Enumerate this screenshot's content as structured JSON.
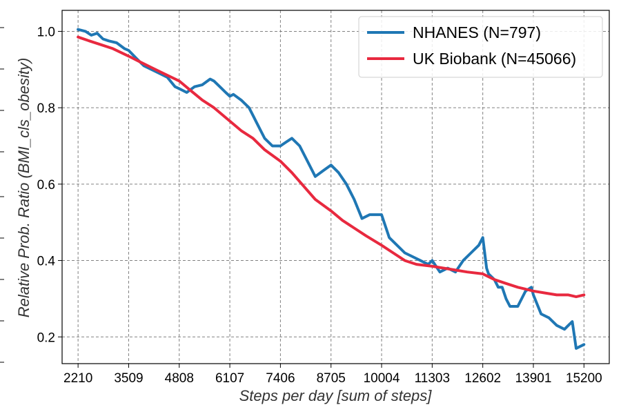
{
  "chart_data": {
    "type": "line",
    "xlabel": "Steps per day [sum of steps]",
    "ylabel": "Relative Prob. Ratio (BMI_cls_obesity)",
    "xlim": [
      1800,
      15850
    ],
    "ylim": [
      0.13,
      1.055
    ],
    "xticks": [
      2210,
      3509,
      4808,
      6107,
      7406,
      8705,
      10004,
      11303,
      12602,
      13901,
      15200
    ],
    "yticks": [
      0.2,
      0.4,
      0.6,
      0.8,
      1.0
    ],
    "ytick_labels": [
      "0.2",
      "0.4",
      "0.6",
      "0.8",
      "1.0"
    ],
    "grid": true,
    "legend_position": "top-right",
    "series": [
      {
        "name": "NHANES (N=797)",
        "color": "#1f77b4",
        "x": [
          2210,
          2400,
          2550,
          2700,
          2850,
          3000,
          3200,
          3400,
          3509,
          3700,
          3900,
          4100,
          4300,
          4500,
          4700,
          4808,
          5000,
          5200,
          5400,
          5600,
          5700,
          5800,
          6000,
          6107,
          6200,
          6400,
          6600,
          6700,
          6800,
          7000,
          7200,
          7406,
          7550,
          7700,
          7900,
          8100,
          8300,
          8500,
          8705,
          8900,
          9100,
          9300,
          9500,
          9700,
          9900,
          10004,
          10200,
          10400,
          10600,
          10800,
          11000,
          11200,
          11303,
          11500,
          11700,
          11900,
          12100,
          12300,
          12500,
          12602,
          12700,
          12750,
          12900,
          13000,
          13100,
          13200,
          13300,
          13500,
          13700,
          13850,
          13901,
          14100,
          14300,
          14500,
          14700,
          14800,
          14900,
          15000,
          15200
        ],
        "y": [
          1.005,
          1.0,
          0.99,
          0.995,
          0.98,
          0.975,
          0.97,
          0.955,
          0.95,
          0.93,
          0.91,
          0.9,
          0.89,
          0.88,
          0.855,
          0.85,
          0.84,
          0.855,
          0.86,
          0.875,
          0.87,
          0.86,
          0.84,
          0.83,
          0.835,
          0.82,
          0.8,
          0.78,
          0.76,
          0.72,
          0.7,
          0.7,
          0.71,
          0.72,
          0.7,
          0.66,
          0.62,
          0.635,
          0.65,
          0.63,
          0.6,
          0.56,
          0.51,
          0.52,
          0.52,
          0.52,
          0.46,
          0.44,
          0.42,
          0.41,
          0.4,
          0.39,
          0.4,
          0.37,
          0.38,
          0.37,
          0.4,
          0.42,
          0.44,
          0.46,
          0.38,
          0.365,
          0.35,
          0.33,
          0.33,
          0.3,
          0.28,
          0.28,
          0.32,
          0.33,
          0.31,
          0.26,
          0.25,
          0.23,
          0.22,
          0.23,
          0.24,
          0.17,
          0.18
        ]
      },
      {
        "name": "UK Biobank (N=45066)",
        "color": "#e8293f",
        "x": [
          2210,
          2500,
          2800,
          3100,
          3509,
          3800,
          4100,
          4400,
          4808,
          5100,
          5400,
          5700,
          6107,
          6400,
          6700,
          7000,
          7406,
          7700,
          8000,
          8300,
          8705,
          9000,
          9300,
          9600,
          10004,
          10300,
          10600,
          10900,
          11303,
          11600,
          11900,
          12200,
          12602,
          12900,
          13200,
          13500,
          13901,
          14200,
          14500,
          14800,
          15000,
          15200
        ],
        "y": [
          0.985,
          0.975,
          0.965,
          0.955,
          0.935,
          0.92,
          0.905,
          0.89,
          0.87,
          0.845,
          0.82,
          0.8,
          0.765,
          0.74,
          0.72,
          0.69,
          0.66,
          0.63,
          0.595,
          0.56,
          0.53,
          0.505,
          0.485,
          0.465,
          0.44,
          0.42,
          0.4,
          0.39,
          0.385,
          0.38,
          0.375,
          0.37,
          0.365,
          0.35,
          0.34,
          0.33,
          0.32,
          0.315,
          0.31,
          0.31,
          0.305,
          0.31
        ]
      }
    ]
  }
}
